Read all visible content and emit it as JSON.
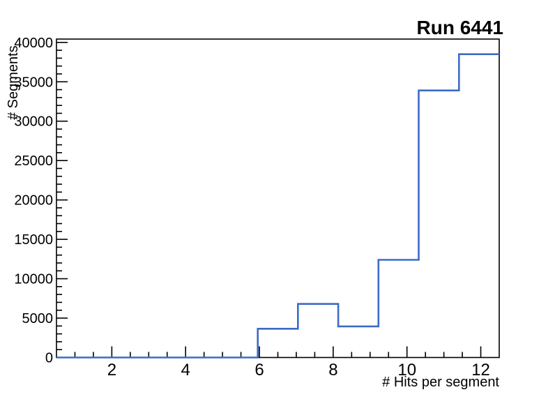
{
  "title": "Run 6441",
  "colors": {
    "background": "#ffffff",
    "frame": "#000000",
    "text": "#000000",
    "histogram_line": "#3d6bc5"
  },
  "chart_data": {
    "type": "bar",
    "style": "step-histogram",
    "title": "Run 6441",
    "xlabel": "# Hits per segment",
    "ylabel": "# Segments",
    "xlim": [
      0.5,
      12.5
    ],
    "ylim": [
      0,
      40425
    ],
    "n_bins": 11,
    "bin_edges": [
      0.5,
      1.591,
      2.682,
      3.773,
      4.864,
      5.955,
      7.045,
      8.136,
      9.227,
      10.318,
      11.409,
      12.5
    ],
    "values": [
      0,
      0,
      0,
      0,
      0,
      3650,
      6800,
      3950,
      12400,
      33900,
      38500
    ],
    "x_major_ticks": [
      2,
      4,
      6,
      8,
      10,
      12
    ],
    "x_tick_labels": [
      "2",
      "4",
      "6",
      "8",
      "10",
      "12"
    ],
    "x_minor_step": 0.5,
    "y_major_step": 5000,
    "y_tick_labels": [
      "0",
      "5000",
      "10000",
      "15000",
      "20000",
      "25000",
      "30000",
      "35000",
      "40000"
    ],
    "y_minor_step": 1000,
    "grid": false,
    "legend": "none",
    "line_color": "#3d6bc5"
  }
}
